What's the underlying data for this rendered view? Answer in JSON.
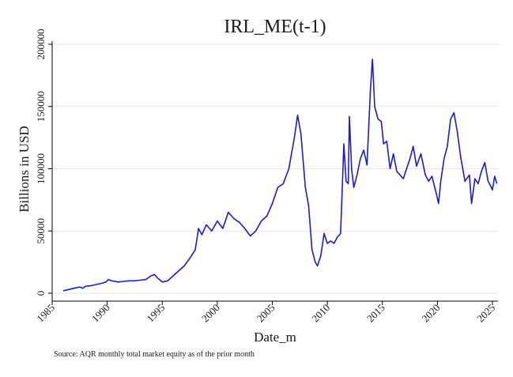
{
  "chart_data": {
    "type": "line",
    "title": "IRL_ME(t-1)",
    "xlabel": "Date_m",
    "ylabel": "Billions in USD",
    "note": "Source: AQR monthly total market equity as of the prior month",
    "xlim": [
      1985,
      2025.5
    ],
    "ylim": [
      0,
      200000
    ],
    "xticks": [
      "1985",
      "1990",
      "1995",
      "2000",
      "2005",
      "2010",
      "2015",
      "2020",
      "2025"
    ],
    "yticks": [
      "0",
      "50000",
      "100000",
      "150000",
      "200000"
    ],
    "grid": true,
    "legend": "none",
    "line_color": "#1a1adc",
    "series": [
      {
        "x": [
          1986.0,
          1986.5,
          1987.0,
          1987.5,
          1987.8,
          1988.0,
          1988.5,
          1989.0,
          1989.5,
          1989.9,
          1990.1,
          1990.4,
          1990.7,
          1991.0,
          1991.5,
          1992.0,
          1992.5,
          1993.0,
          1993.5,
          1994.0,
          1994.3,
          1994.6,
          1995.0,
          1995.5,
          1996.0,
          1996.5,
          1997.0,
          1997.5,
          1998.0,
          1998.3,
          1998.6,
          1999.0,
          1999.5,
          2000.0,
          2000.5,
          2001.0,
          2001.5,
          2002.0,
          2002.5,
          2003.0,
          2003.5,
          2004.0,
          2004.5,
          2005.0,
          2005.5,
          2006.0,
          2006.5,
          2007.0,
          2007.3,
          2007.6,
          2008.0,
          2008.3,
          2008.6,
          2008.9,
          2009.1,
          2009.4,
          2009.7,
          2010.0,
          2010.3,
          2010.6,
          2010.9,
          2011.2,
          2011.5,
          2011.7,
          2011.9,
          2012.0,
          2012.2,
          2012.4,
          2012.7,
          2013.0,
          2013.3,
          2013.6,
          2013.9,
          2014.1,
          2014.3,
          2014.6,
          2014.9,
          2015.1,
          2015.4,
          2015.7,
          2016.0,
          2016.3,
          2016.6,
          2016.9,
          2017.2,
          2017.5,
          2017.8,
          2018.1,
          2018.5,
          2018.9,
          2019.2,
          2019.5,
          2019.9,
          2020.1,
          2020.3,
          2020.6,
          2020.9,
          2021.2,
          2021.5,
          2021.8,
          2022.1,
          2022.5,
          2022.9,
          2023.1,
          2023.4,
          2023.7,
          2024.0,
          2024.3,
          2024.6,
          2024.9,
          2025.0,
          2025.2,
          2025.4
        ],
        "y": [
          2000,
          3000,
          4000,
          5000,
          4000,
          5500,
          6000,
          7000,
          8000,
          9000,
          11000,
          10000,
          9500,
          9000,
          9500,
          10000,
          10000,
          10500,
          11000,
          14000,
          15000,
          12000,
          9000,
          10000,
          14000,
          18000,
          22000,
          28000,
          35000,
          52000,
          47000,
          55000,
          50000,
          58000,
          52000,
          65000,
          60000,
          57000,
          52000,
          46000,
          50000,
          58000,
          62000,
          72000,
          85000,
          88000,
          100000,
          125000,
          143000,
          128000,
          85000,
          70000,
          35000,
          25000,
          22000,
          30000,
          48000,
          40000,
          42000,
          40000,
          45000,
          48000,
          120000,
          90000,
          88000,
          142000,
          100000,
          85000,
          95000,
          108000,
          115000,
          103000,
          162000,
          188000,
          150000,
          140000,
          138000,
          120000,
          122000,
          100000,
          112000,
          98000,
          95000,
          92000,
          100000,
          108000,
          118000,
          102000,
          112000,
          95000,
          90000,
          94000,
          80000,
          72000,
          90000,
          108000,
          118000,
          140000,
          145000,
          130000,
          110000,
          90000,
          95000,
          72000,
          92000,
          88000,
          98000,
          105000,
          90000,
          85000,
          83000,
          94000,
          88000
        ]
      }
    ]
  }
}
